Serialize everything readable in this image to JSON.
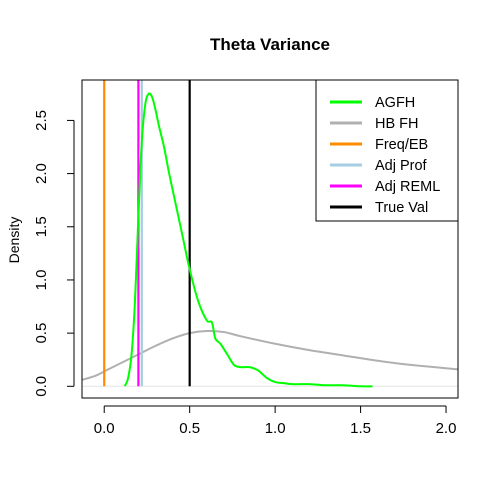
{
  "chart_data": {
    "type": "line",
    "title": "Theta Variance",
    "xlabel": "",
    "ylabel": "Density",
    "xlim": [
      -0.13,
      2.07
    ],
    "ylim": [
      -0.11,
      2.88
    ],
    "x_ticks": [
      0.0,
      0.5,
      1.0,
      1.5,
      2.0
    ],
    "x_tick_labels": [
      "0.0",
      "0.5",
      "1.0",
      "1.5",
      "2.0"
    ],
    "y_ticks": [
      0.0,
      0.5,
      1.0,
      1.5,
      2.0,
      2.5
    ],
    "y_tick_labels": [
      "0.0",
      "0.5",
      "1.0",
      "1.5",
      "2.0",
      "2.5"
    ],
    "grid": false,
    "legend_position": "top-right",
    "series": [
      {
        "name": "AGFH",
        "kind": "density",
        "color": "#00ff00",
        "x": [
          0.12,
          0.14,
          0.16,
          0.18,
          0.2,
          0.22,
          0.24,
          0.26,
          0.28,
          0.3,
          0.32,
          0.35,
          0.38,
          0.42,
          0.46,
          0.5,
          0.55,
          0.6,
          0.63,
          0.65,
          0.68,
          0.72,
          0.76,
          0.8,
          0.85,
          0.9,
          0.95,
          1.0,
          1.05,
          1.1,
          1.2,
          1.3,
          1.4,
          1.5,
          1.57
        ],
        "y": [
          0.0,
          0.08,
          0.3,
          0.8,
          1.6,
          2.3,
          2.65,
          2.75,
          2.72,
          2.6,
          2.45,
          2.25,
          2.0,
          1.7,
          1.4,
          1.1,
          0.8,
          0.62,
          0.6,
          0.45,
          0.4,
          0.3,
          0.2,
          0.18,
          0.18,
          0.15,
          0.08,
          0.04,
          0.03,
          0.02,
          0.02,
          0.01,
          0.01,
          0.0,
          0.0
        ]
      },
      {
        "name": "HB FH",
        "kind": "density",
        "color": "#b0b0b0",
        "x": [
          -0.13,
          -0.05,
          0.0,
          0.05,
          0.1,
          0.2,
          0.3,
          0.4,
          0.5,
          0.6,
          0.7,
          0.8,
          1.0,
          1.2,
          1.4,
          1.6,
          1.8,
          2.07
        ],
        "y": [
          0.06,
          0.1,
          0.14,
          0.18,
          0.22,
          0.3,
          0.38,
          0.45,
          0.5,
          0.52,
          0.51,
          0.47,
          0.4,
          0.34,
          0.29,
          0.24,
          0.2,
          0.16
        ]
      },
      {
        "name": "Freq/EB",
        "kind": "vline",
        "color": "#ff8c00",
        "x": 0.0
      },
      {
        "name": "Adj Prof",
        "kind": "vline",
        "color": "#a6cee3",
        "x": 0.22
      },
      {
        "name": "Adj REML",
        "kind": "vline",
        "color": "#ff00ff",
        "x": 0.2
      },
      {
        "name": "True Val",
        "kind": "vline",
        "color": "#000000",
        "x": 0.5
      }
    ]
  }
}
